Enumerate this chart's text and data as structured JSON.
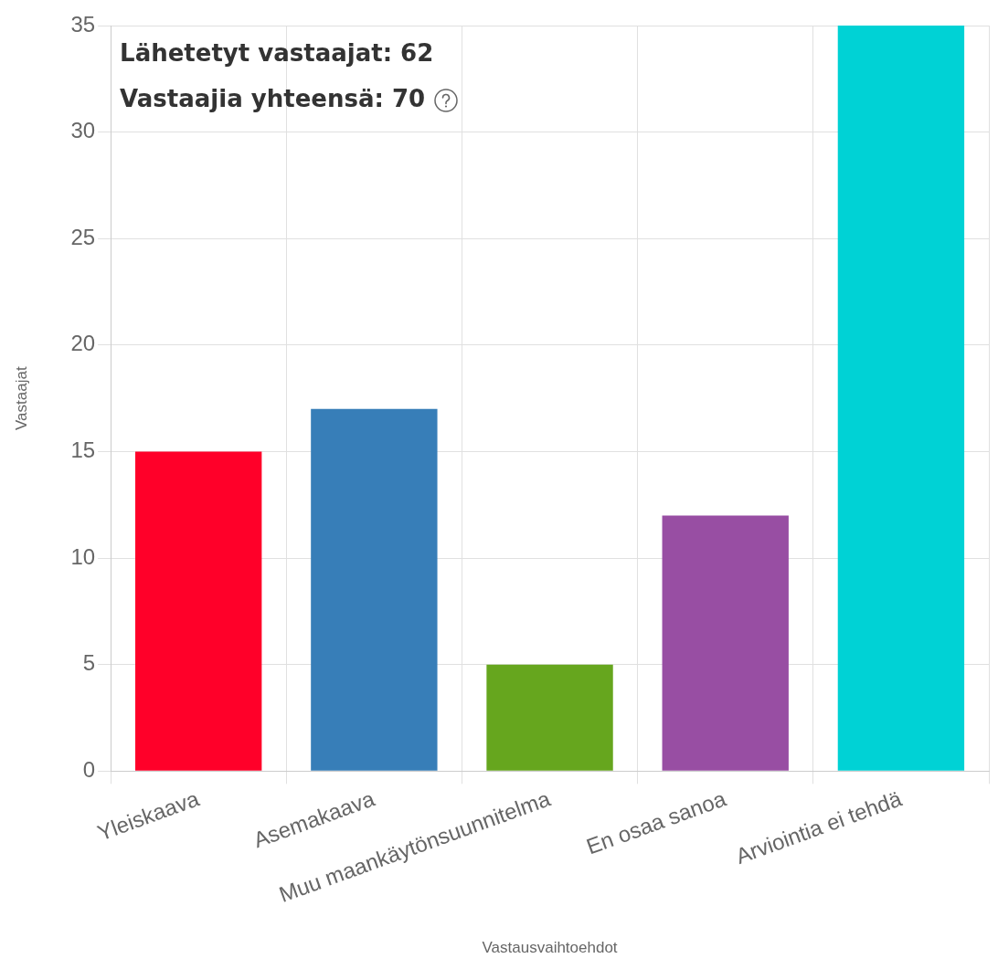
{
  "chart_data": {
    "type": "bar",
    "xlabel": "Vastausvaihtoehdot",
    "ylabel": "Vastaajat",
    "categories": [
      "Yleiskaava",
      "Asemakaava",
      "Muu maankäytönsuunnitelma",
      "En osaa sanoa",
      "Arviointia ei tehdä"
    ],
    "values": [
      15,
      17,
      5,
      12,
      35
    ],
    "colors": [
      "#ff0029",
      "#377eb8",
      "#66a61e",
      "#984ea3",
      "#00d2d5"
    ],
    "ylim": [
      0,
      35
    ],
    "yticks": [
      0,
      5,
      10,
      15,
      20,
      25,
      30,
      35
    ],
    "grid": true,
    "legend": false,
    "annotations": [
      "Lähetetyt vastaajat: 62",
      "Vastaajia yhteensä: 70"
    ]
  }
}
